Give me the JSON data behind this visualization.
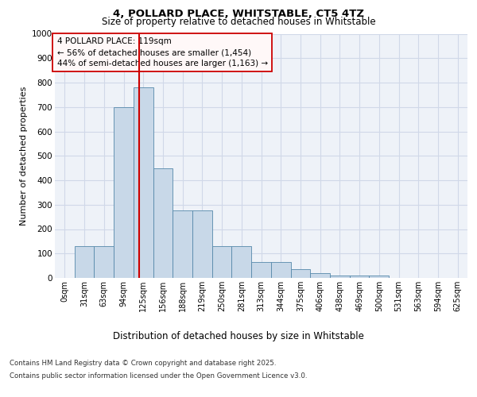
{
  "title_line1": "4, POLLARD PLACE, WHITSTABLE, CT5 4TZ",
  "title_line2": "Size of property relative to detached houses in Whitstable",
  "xlabel": "Distribution of detached houses by size in Whitstable",
  "ylabel": "Number of detached properties",
  "bar_labels": [
    "0sqm",
    "31sqm",
    "63sqm",
    "94sqm",
    "125sqm",
    "156sqm",
    "188sqm",
    "219sqm",
    "250sqm",
    "281sqm",
    "313sqm",
    "344sqm",
    "375sqm",
    "406sqm",
    "438sqm",
    "469sqm",
    "500sqm",
    "531sqm",
    "563sqm",
    "594sqm",
    "625sqm"
  ],
  "bar_values": [
    0,
    130,
    130,
    700,
    780,
    450,
    275,
    275,
    130,
    130,
    65,
    65,
    35,
    20,
    10,
    10,
    10,
    0,
    0,
    0,
    0
  ],
  "bar_color": "#c8d8e8",
  "bar_edge_color": "#5588aa",
  "grid_color": "#d0d8e8",
  "bg_color": "#eef2f8",
  "ylim": [
    0,
    1000
  ],
  "yticks": [
    0,
    100,
    200,
    300,
    400,
    500,
    600,
    700,
    800,
    900,
    1000
  ],
  "vline_color": "#cc0000",
  "annotation_text": "4 POLLARD PLACE: 119sqm\n← 56% of detached houses are smaller (1,454)\n44% of semi-detached houses are larger (1,163) →",
  "annotation_box_facecolor": "#fff8f8",
  "annotation_box_edge": "#cc0000",
  "footer_line1": "Contains HM Land Registry data © Crown copyright and database right 2025.",
  "footer_line2": "Contains public sector information licensed under the Open Government Licence v3.0."
}
